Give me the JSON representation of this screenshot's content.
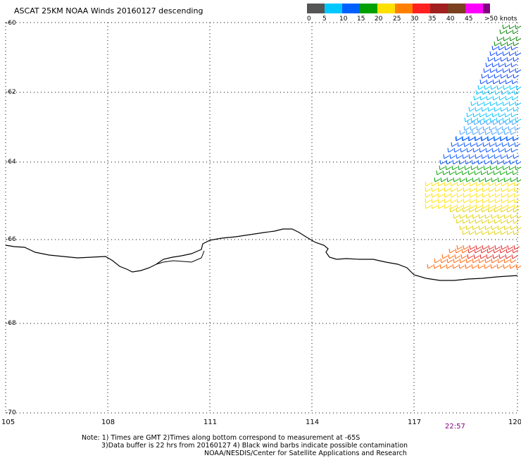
{
  "title": "ASCAT 25KM NOAA Winds 20160127 descending",
  "colorbar": {
    "swatches": [
      "#555555",
      "#00a0ff",
      "#0060ff",
      "#008000",
      "#e0e000",
      "#ff8000",
      "#ff2020",
      "#a02020",
      "#603000",
      "#ff00ff",
      "#800080",
      "#4000a0"
    ],
    "labels": [
      "0",
      "5",
      "10",
      "15",
      "20",
      "25",
      "30",
      "35",
      "40",
      "45",
      ">50 knots"
    ]
  },
  "axes": {
    "lat_labels": [
      "-60",
      "-62",
      "-64",
      "-66",
      "-68",
      "-70"
    ],
    "lon_labels": [
      "105",
      "108",
      "111",
      "114",
      "117",
      "120"
    ],
    "lat_range": [
      -70,
      -60
    ],
    "lon_range": [
      105,
      120
    ],
    "grid": "dotted"
  },
  "timestamp": "22:57",
  "notes": {
    "line1": "Note: 1) Times are GMT 2)Times along bottom correspond to measurement at -65S",
    "line2": "3)Data buffer is 22 hrs from 20160127 4) Black wind barbs indicate possible contamination",
    "line3": "NOAA/NESDIS/Center for Satellite Applications and Research"
  },
  "colors": {
    "timestamp": "#800080"
  }
}
